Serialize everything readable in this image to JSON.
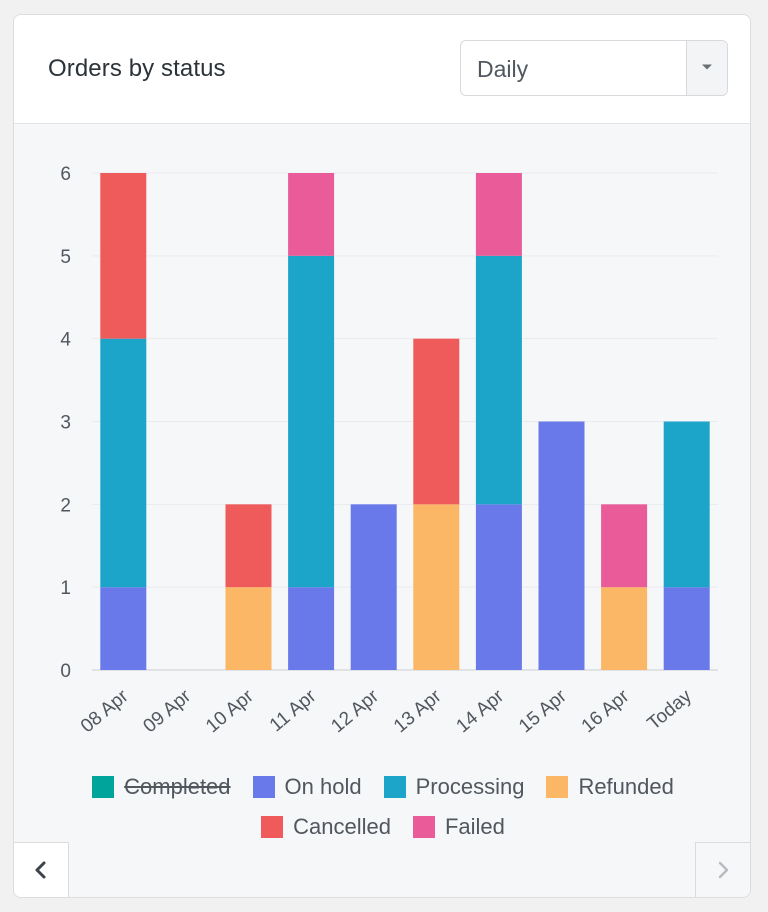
{
  "card": {
    "title": "Orders by status",
    "period_select": {
      "value": "Daily",
      "icon": "caret-down-icon"
    },
    "nav": {
      "prev_icon": "chevron-left-icon",
      "next_icon": "chevron-right-icon"
    }
  },
  "chart_data": {
    "type": "bar",
    "stacked": true,
    "categories": [
      "08 Apr",
      "09 Apr",
      "10 Apr",
      "11 Apr",
      "12 Apr",
      "13 Apr",
      "14 Apr",
      "15 Apr",
      "16 Apr",
      "Today"
    ],
    "ylim": [
      0,
      6
    ],
    "yticks": [
      0,
      1,
      2,
      3,
      4,
      5,
      6
    ],
    "grid": true,
    "legend_position": "bottom",
    "series": [
      {
        "name": "Completed",
        "color": "#00a49a",
        "hidden": true,
        "values": [
          0,
          0,
          0,
          0,
          0,
          0,
          0,
          0,
          0,
          0
        ]
      },
      {
        "name": "On hold",
        "color": "#6a79ea",
        "hidden": false,
        "values": [
          1,
          0,
          0,
          1,
          2,
          0,
          2,
          3,
          0,
          1
        ]
      },
      {
        "name": "Processing",
        "color": "#1ca5c9",
        "hidden": false,
        "values": [
          3,
          0,
          0,
          4,
          0,
          0,
          3,
          0,
          0,
          2
        ]
      },
      {
        "name": "Refunded",
        "color": "#fbb666",
        "hidden": false,
        "values": [
          0,
          0,
          1,
          0,
          0,
          2,
          0,
          0,
          1,
          0
        ]
      },
      {
        "name": "Cancelled",
        "color": "#ef5b5b",
        "hidden": false,
        "values": [
          2,
          0,
          1,
          0,
          0,
          2,
          0,
          0,
          0,
          0
        ]
      },
      {
        "name": "Failed",
        "color": "#e95b99",
        "hidden": false,
        "values": [
          0,
          0,
          0,
          1,
          0,
          0,
          1,
          0,
          1,
          0
        ]
      }
    ]
  }
}
